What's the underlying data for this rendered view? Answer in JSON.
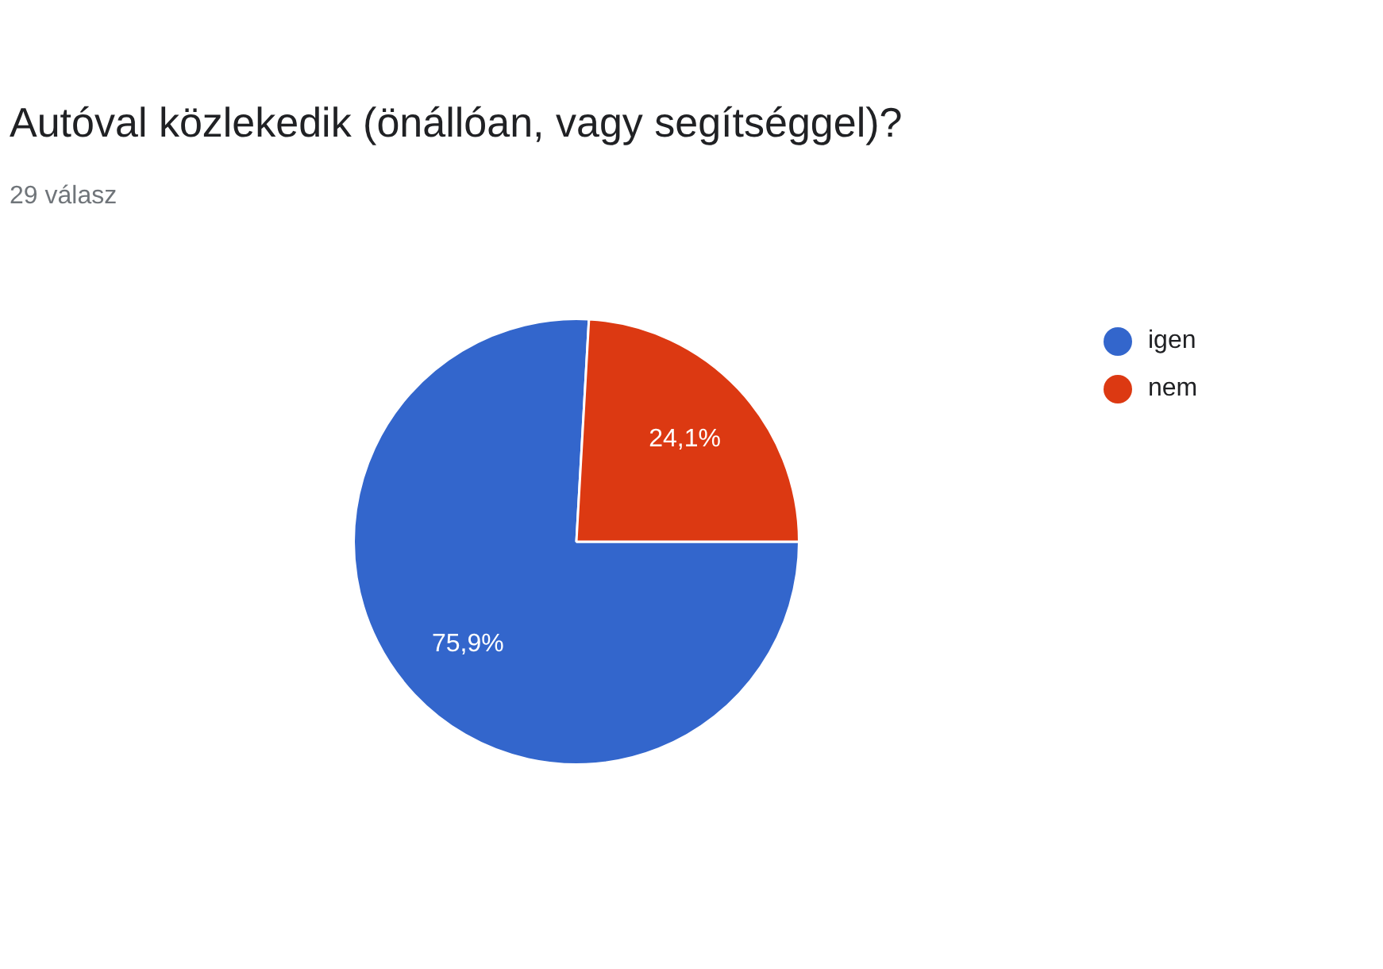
{
  "chart_data": {
    "type": "pie",
    "title": "Autóval közlekedik (önállóan, vagy segítséggel)?",
    "subtitle": "29 válasz",
    "categories": [
      "igen",
      "nem"
    ],
    "values": [
      75.9,
      24.1
    ],
    "colors": [
      "#3366cc",
      "#dc3912"
    ],
    "value_labels": [
      "75,9%",
      "24,1%"
    ],
    "legend": "top right"
  }
}
